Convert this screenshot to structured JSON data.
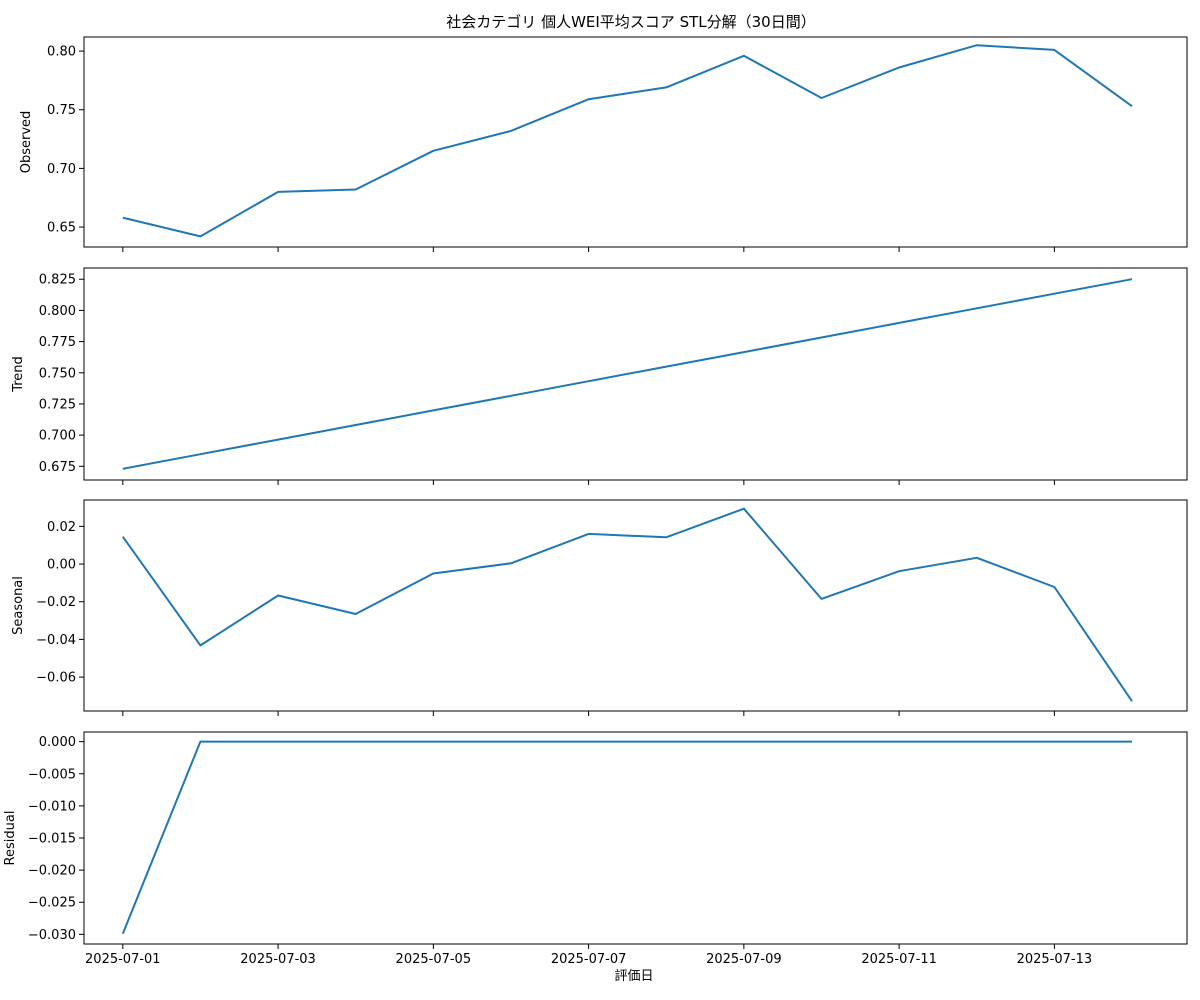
{
  "chart_data": {
    "type": "line",
    "title": "社会カテゴリ 個人WEI平均スコア STL分解（30日間）",
    "xlabel": "評価日",
    "x": [
      "2025-07-01",
      "2025-07-02",
      "2025-07-03",
      "2025-07-04",
      "2025-07-05",
      "2025-07-06",
      "2025-07-07",
      "2025-07-08",
      "2025-07-09",
      "2025-07-10",
      "2025-07-11",
      "2025-07-12",
      "2025-07-13",
      "2025-07-14"
    ],
    "xticks": [
      "2025-07-01",
      "2025-07-03",
      "2025-07-05",
      "2025-07-07",
      "2025-07-09",
      "2025-07-11",
      "2025-07-13"
    ],
    "xlim": [
      "2025-06-30T12:00",
      "2025-07-14T17:00"
    ],
    "grid": false,
    "color": "#1f77b4",
    "panels": [
      {
        "ylabel": "Observed",
        "ylim": [
          0.633,
          0.812
        ],
        "yticks": [
          "0.65",
          "0.70",
          "0.75",
          "0.80"
        ],
        "values": [
          0.658,
          0.642,
          0.68,
          0.682,
          0.715,
          0.732,
          0.759,
          0.769,
          0.796,
          0.76,
          0.786,
          0.805,
          0.801,
          0.753
        ]
      },
      {
        "ylabel": "Trend",
        "ylim": [
          0.664,
          0.834
        ],
        "yticks": [
          "0.675",
          "0.700",
          "0.725",
          "0.750",
          "0.775",
          "0.800",
          "0.825"
        ],
        "values": [
          0.673,
          0.6847,
          0.6964,
          0.7081,
          0.7198,
          0.7315,
          0.7432,
          0.7549,
          0.7666,
          0.7783,
          0.79,
          0.8017,
          0.8134,
          0.825
        ]
      },
      {
        "ylabel": "Seasonal",
        "ylim": [
          -0.078,
          0.034
        ],
        "yticks": [
          "0.02",
          "0.00",
          "−0.02",
          "−0.04",
          "−0.06"
        ],
        "values": [
          0.0145,
          -0.0432,
          -0.0167,
          -0.0265,
          -0.005,
          0.0004,
          0.016,
          0.0142,
          0.0294,
          -0.0185,
          -0.0038,
          0.0033,
          -0.0122,
          -0.0728
        ]
      },
      {
        "ylabel": "Residual",
        "ylim": [
          -0.0315,
          0.0015
        ],
        "yticks": [
          "0.000",
          "−0.005",
          "−0.010",
          "−0.015",
          "−0.020",
          "−0.025",
          "−0.030"
        ],
        "values": [
          -0.0299,
          0.0,
          0.0,
          0.0,
          0.0,
          0.0,
          0.0,
          0.0,
          0.0,
          0.0,
          0.0,
          0.0,
          0.0,
          0.0
        ]
      }
    ]
  }
}
